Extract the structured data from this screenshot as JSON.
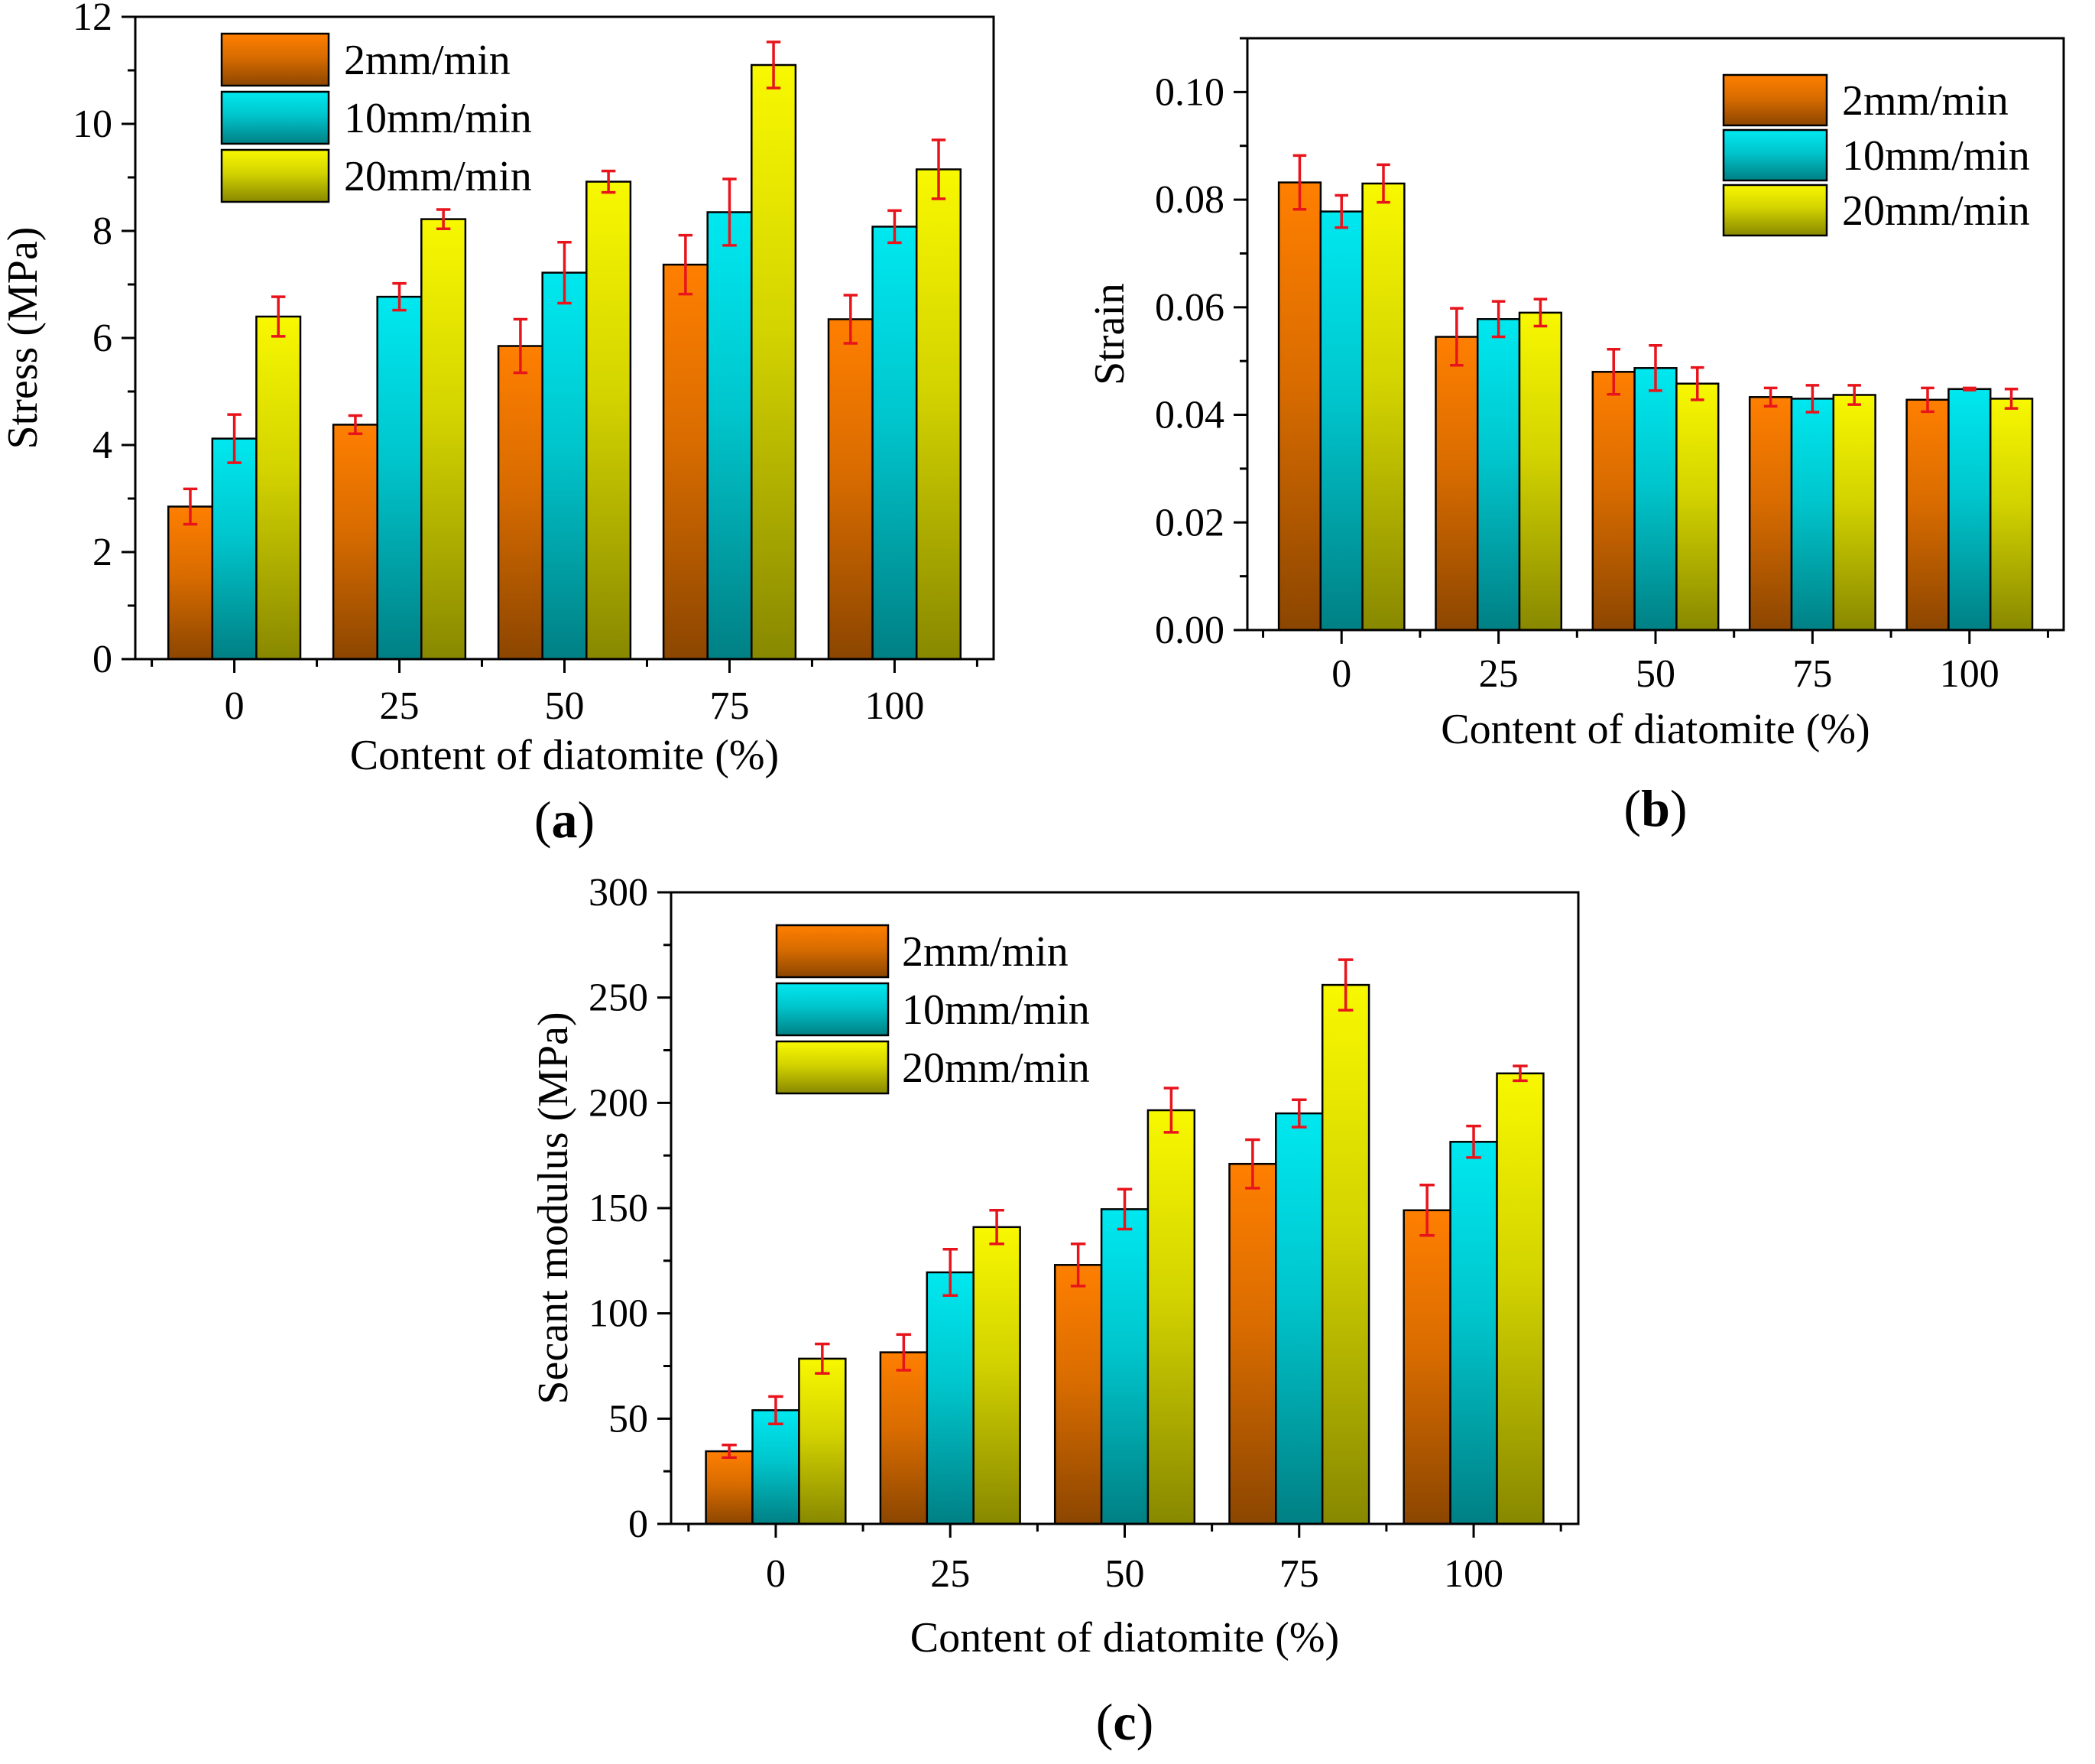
{
  "colors": {
    "series_2mm": "#ff7f00",
    "series_10mm": "#00e8f0",
    "series_20mm": "#f8f800",
    "error_bar": "#e8141c"
  },
  "chart_data": [
    {
      "id": "a",
      "type": "bar",
      "panel_label": "a",
      "xlabel": "Content of diatomite (%)",
      "ylabel": "Stress (MPa)",
      "categories": [
        "0",
        "25",
        "50",
        "75",
        "100"
      ],
      "ylim": [
        0,
        12
      ],
      "yticks": [
        0,
        2,
        4,
        6,
        8,
        10,
        12
      ],
      "ytick_labels": [
        "0",
        "2",
        "4",
        "6",
        "8",
        "10",
        "12"
      ],
      "legend": "top-left",
      "series": [
        {
          "name": "2mm/min",
          "values": [
            2.85,
            4.38,
            5.85,
            7.37,
            6.35
          ],
          "errors": [
            0.33,
            0.17,
            0.5,
            0.55,
            0.45
          ]
        },
        {
          "name": "10mm/min",
          "values": [
            4.12,
            6.77,
            7.22,
            8.35,
            8.08
          ],
          "errors": [
            0.45,
            0.25,
            0.57,
            0.62,
            0.3
          ]
        },
        {
          "name": "20mm/min",
          "values": [
            6.4,
            8.22,
            8.92,
            11.1,
            9.15
          ],
          "errors": [
            0.37,
            0.18,
            0.2,
            0.43,
            0.55
          ]
        }
      ]
    },
    {
      "id": "b",
      "type": "bar",
      "panel_label": "b",
      "xlabel": "Content of diatomite (%)",
      "ylabel": "Strain",
      "categories": [
        "0",
        "25",
        "50",
        "75",
        "100"
      ],
      "ylim": [
        0,
        0.11
      ],
      "yticks": [
        0,
        0.02,
        0.04,
        0.06,
        0.08,
        0.1
      ],
      "ytick_labels": [
        "0.00",
        "0.02",
        "0.04",
        "0.06",
        "0.08",
        "0.10"
      ],
      "legend": "top-right",
      "series": [
        {
          "name": "2mm/min",
          "values": [
            0.0832,
            0.0545,
            0.048,
            0.0433,
            0.0428
          ],
          "errors": [
            0.005,
            0.0053,
            0.0042,
            0.0017,
            0.0022
          ]
        },
        {
          "name": "10mm/min",
          "values": [
            0.0778,
            0.0578,
            0.0487,
            0.043,
            0.0448
          ],
          "errors": [
            0.003,
            0.0033,
            0.0042,
            0.0025,
            0.0002
          ]
        },
        {
          "name": "20mm/min",
          "values": [
            0.083,
            0.059,
            0.0458,
            0.0437,
            0.043
          ],
          "errors": [
            0.0035,
            0.0025,
            0.003,
            0.0018,
            0.0018
          ]
        }
      ]
    },
    {
      "id": "c",
      "type": "bar",
      "panel_label": "c",
      "xlabel": "Content of diatomite (%)",
      "ylabel": "Secant modulus (MPa)",
      "categories": [
        "0",
        "25",
        "50",
        "75",
        "100"
      ],
      "ylim": [
        0,
        300
      ],
      "yticks": [
        0,
        50,
        100,
        150,
        200,
        250,
        300
      ],
      "ytick_labels": [
        "0",
        "50",
        "100",
        "150",
        "200",
        "250",
        "300"
      ],
      "legend": "top-left",
      "series": [
        {
          "name": "2mm/min",
          "values": [
            34.5,
            81.5,
            123,
            171,
            149
          ],
          "errors": [
            3,
            8.5,
            10,
            11.5,
            12
          ]
        },
        {
          "name": "10mm/min",
          "values": [
            54,
            119.5,
            149.5,
            195,
            181.5
          ],
          "errors": [
            6.5,
            11,
            9.5,
            6.5,
            7.5
          ]
        },
        {
          "name": "20mm/min",
          "values": [
            78.5,
            141,
            196.5,
            256,
            214
          ],
          "errors": [
            7,
            8,
            10.5,
            12,
            3.5
          ]
        }
      ]
    }
  ]
}
